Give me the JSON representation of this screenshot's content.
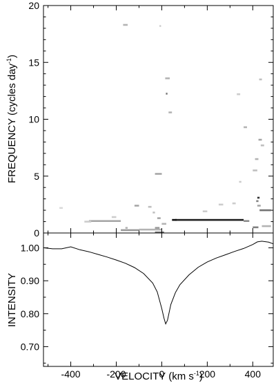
{
  "chart_data": [
    {
      "type": "heatmap",
      "xlim": [
        -520,
        490
      ],
      "ylim": [
        0,
        20
      ],
      "ylabel_main": "FREQUENCY (cycles day",
      "ylabel_unit_sup": "-1",
      "ylabel_close": ")",
      "yticks": [
        0,
        5,
        10,
        15,
        20
      ],
      "yticklabels": [
        "0",
        "5",
        "10",
        "15",
        "20"
      ],
      "xticks": [
        -400,
        -200,
        0,
        200,
        400
      ],
      "grid": false,
      "features": [
        {
          "x0": 60,
          "x1": 360,
          "y": 1.15,
          "shade": 0.88
        },
        {
          "x0": 45,
          "x1": 65,
          "y": 1.15,
          "shade": 0.95
        },
        {
          "x0": 360,
          "x1": 385,
          "y": 1.05,
          "shade": 0.45
        },
        {
          "x0": -320,
          "x1": -180,
          "y": 1.05,
          "shade": 0.35
        },
        {
          "x0": -340,
          "x1": -310,
          "y": 1.0,
          "shade": 0.2
        },
        {
          "x0": -180,
          "x1": -100,
          "y": 0.25,
          "shade": 0.4
        },
        {
          "x0": -100,
          "x1": 0,
          "y": 0.3,
          "shade": 0.3
        },
        {
          "x0": 400,
          "x1": 425,
          "y": 0.5,
          "shade": 0.5
        },
        {
          "x0": 440,
          "x1": 480,
          "y": 0.6,
          "shade": 0.3
        },
        {
          "x0": -30,
          "x1": 10,
          "y": 0.05,
          "shade": 0.55
        },
        {
          "x0": -30,
          "x1": -10,
          "y": 0.45,
          "shade": 0.4
        },
        {
          "x0": 0,
          "x1": 20,
          "y": 0.8,
          "shade": 0.3
        },
        {
          "x0": 430,
          "x1": 480,
          "y": 2.0,
          "shade": 0.55
        },
        {
          "x0": 420,
          "x1": 430,
          "y": 3.1,
          "shade": 0.8
        },
        {
          "x0": 415,
          "x1": 425,
          "y": 2.8,
          "shade": 0.5
        },
        {
          "x0": 420,
          "x1": 435,
          "y": 2.4,
          "shade": 0.35
        },
        {
          "x0": 400,
          "x1": 420,
          "y": 5.5,
          "shade": 0.25
        },
        {
          "x0": 410,
          "x1": 425,
          "y": 6.5,
          "shade": 0.3
        },
        {
          "x0": 425,
          "x1": 440,
          "y": 8.2,
          "shade": 0.35
        },
        {
          "x0": 435,
          "x1": 450,
          "y": 7.7,
          "shade": 0.25
        },
        {
          "x0": 360,
          "x1": 375,
          "y": 9.3,
          "shade": 0.3
        },
        {
          "x0": 330,
          "x1": 345,
          "y": 12.2,
          "shade": 0.2
        },
        {
          "x0": 428,
          "x1": 440,
          "y": 13.5,
          "shade": 0.25
        },
        {
          "x0": 18,
          "x1": 25,
          "y": 12.25,
          "shade": 0.55
        },
        {
          "x0": 15,
          "x1": 35,
          "y": 13.6,
          "shade": 0.3
        },
        {
          "x0": 30,
          "x1": 45,
          "y": 10.6,
          "shade": 0.3
        },
        {
          "x0": -30,
          "x1": 0,
          "y": 5.2,
          "shade": 0.35
        },
        {
          "x0": -170,
          "x1": -150,
          "y": 18.3,
          "shade": 0.3
        },
        {
          "x0": -10,
          "x1": -3,
          "y": 18.2,
          "shade": 0.2
        },
        {
          "x0": -120,
          "x1": -100,
          "y": 2.4,
          "shade": 0.35
        },
        {
          "x0": -220,
          "x1": -200,
          "y": 1.4,
          "shade": 0.2
        },
        {
          "x0": -60,
          "x1": -45,
          "y": 2.3,
          "shade": 0.25
        },
        {
          "x0": -40,
          "x1": -30,
          "y": 1.8,
          "shade": 0.25
        },
        {
          "x0": -20,
          "x1": -5,
          "y": 1.3,
          "shade": 0.35
        },
        {
          "x0": 250,
          "x1": 270,
          "y": 2.5,
          "shade": 0.2
        },
        {
          "x0": 310,
          "x1": 325,
          "y": 2.6,
          "shade": 0.2
        },
        {
          "x0": 180,
          "x1": 200,
          "y": 1.9,
          "shade": 0.2
        },
        {
          "x0": -450,
          "x1": -435,
          "y": 2.2,
          "shade": 0.15
        },
        {
          "x0": 340,
          "x1": 350,
          "y": 4.5,
          "shade": 0.2
        },
        {
          "x0": -160,
          "x1": -150,
          "y": 0.45,
          "shade": 0.3
        }
      ]
    },
    {
      "type": "line",
      "xlim": [
        -520,
        490
      ],
      "ylim": [
        0.64,
        1.045
      ],
      "xlabel_main": "VELOCITY (km s",
      "xlabel_unit_sup": "-1",
      "xlabel_close": ")",
      "ylabel": "INTENSITY",
      "xticks": [
        -400,
        -200,
        0,
        200,
        400
      ],
      "xticklabels": [
        "-400",
        "-200",
        "0",
        "200",
        "400"
      ],
      "yticks": [
        0.7,
        0.8,
        0.9,
        1.0
      ],
      "yticklabels": [
        "0.70",
        "0.80",
        "0.90",
        "1.00"
      ],
      "grid": false,
      "series": [
        {
          "x": [
            -520,
            -480,
            -440,
            -400,
            -360,
            -320,
            -280,
            -240,
            -200,
            -160,
            -120,
            -80,
            -40,
            -20,
            0,
            10,
            17,
            25,
            40,
            60,
            80,
            120,
            160,
            200,
            240,
            280,
            320,
            360,
            400,
            420,
            440,
            470,
            490
          ],
          "y": [
            1.0,
            0.997,
            0.997,
            1.003,
            0.994,
            0.988,
            0.98,
            0.972,
            0.963,
            0.953,
            0.94,
            0.922,
            0.893,
            0.866,
            0.816,
            0.786,
            0.769,
            0.78,
            0.828,
            0.864,
            0.888,
            0.918,
            0.941,
            0.957,
            0.969,
            0.979,
            0.989,
            0.998,
            1.01,
            1.018,
            1.02,
            1.017,
            1.012
          ]
        }
      ]
    }
  ]
}
